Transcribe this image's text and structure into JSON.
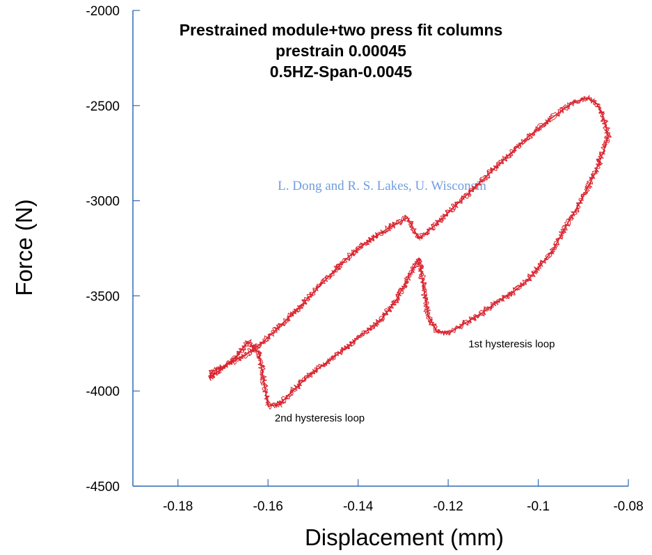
{
  "chart_data": {
    "type": "line",
    "title": [
      "Prestrained module+two press fit columns",
      "prestrain 0.00045",
      "0.5HZ-Span-0.0045"
    ],
    "xlabel": "Displacement (mm)",
    "ylabel": "Force (N)",
    "xlim": [
      -0.19,
      -0.08
    ],
    "ylim": [
      -4500,
      -2000
    ],
    "xticks": [
      -0.18,
      -0.16,
      -0.14,
      -0.12,
      -0.1,
      -0.08
    ],
    "xtick_labels": [
      "-0.18",
      "-0.16",
      "-0.14",
      "-0.12",
      "-0.1",
      "-0.08"
    ],
    "yticks": [
      -2000,
      -2500,
      -3000,
      -3500,
      -4000,
      -4500
    ],
    "ytick_labels": [
      "-2000",
      "-2500",
      "-3000",
      "-3500",
      "-4000",
      "-4500"
    ],
    "credit": "L. Dong and R. S. Lakes, U. Wisconsin",
    "grid": false,
    "series": [
      {
        "name": "1st hysteresis loop",
        "x": [
          -0.1265,
          -0.123,
          -0.119,
          -0.115,
          -0.111,
          -0.107,
          -0.103,
          -0.099,
          -0.095,
          -0.092,
          -0.089,
          -0.087,
          -0.0855,
          -0.0845,
          -0.0855,
          -0.0875,
          -0.0905,
          -0.0935,
          -0.0965,
          -0.0995,
          -0.1025,
          -0.1055,
          -0.109,
          -0.1125,
          -0.116,
          -0.1195,
          -0.1225,
          -0.1245,
          -0.1255,
          -0.1265
        ],
        "y": [
          -3200,
          -3130,
          -3040,
          -2950,
          -2860,
          -2770,
          -2680,
          -2600,
          -2530,
          -2480,
          -2460,
          -2490,
          -2560,
          -2660,
          -2740,
          -2860,
          -3000,
          -3120,
          -3250,
          -3340,
          -3420,
          -3480,
          -3530,
          -3590,
          -3640,
          -3690,
          -3690,
          -3600,
          -3450,
          -3300
        ]
      },
      {
        "name": "2nd hysteresis loop",
        "x": [
          -0.1265,
          -0.129,
          -0.133,
          -0.137,
          -0.141,
          -0.145,
          -0.149,
          -0.153,
          -0.157,
          -0.161,
          -0.165,
          -0.169,
          -0.1725,
          -0.173,
          -0.1705,
          -0.167,
          -0.1645,
          -0.162,
          -0.16,
          -0.1575,
          -0.1545,
          -0.151,
          -0.147,
          -0.143,
          -0.139,
          -0.135,
          -0.1315,
          -0.1285,
          -0.1265
        ],
        "y": [
          -3200,
          -3090,
          -3140,
          -3200,
          -3270,
          -3360,
          -3460,
          -3560,
          -3650,
          -3740,
          -3810,
          -3860,
          -3900,
          -3930,
          -3890,
          -3820,
          -3740,
          -3800,
          -4080,
          -4070,
          -4000,
          -3920,
          -3850,
          -3780,
          -3700,
          -3630,
          -3520,
          -3390,
          -3300
        ]
      }
    ],
    "line_color": "#d9232e",
    "axis_color": "#2f6ab5",
    "credit_color": "#6f9de0",
    "annotations": [
      {
        "text": "1st hysteresis loop",
        "x": -0.1155,
        "y": -3770
      },
      {
        "text": "2nd hysteresis loop",
        "x": -0.1585,
        "y": -4160
      }
    ]
  }
}
